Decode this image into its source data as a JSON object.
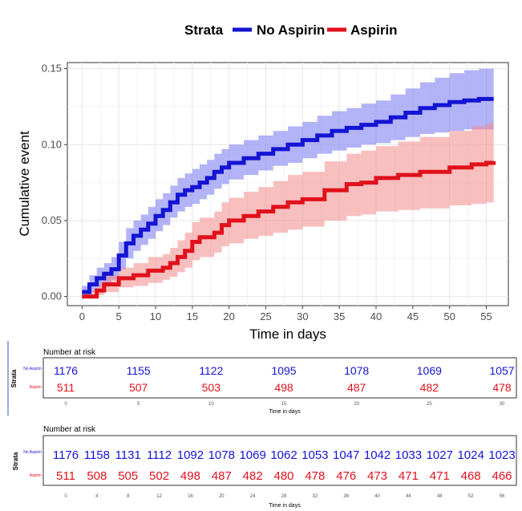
{
  "colors": {
    "no_aspirin": "#1414d4",
    "aspirin": "#e0111b",
    "no_aspirin_band": "#8080f2",
    "aspirin_band": "#f28a8a",
    "grid": "#e6e6e6"
  },
  "legend": {
    "title": "Strata",
    "items": [
      "No Aspirin",
      "Aspirin"
    ]
  },
  "chart_data": {
    "type": "line",
    "xlabel": "Time in days",
    "ylabel": "Cumulative event",
    "xlim": [
      -2,
      58
    ],
    "ylim": [
      -0.006,
      0.154
    ],
    "x_ticks": [
      "0",
      "5",
      "10",
      "15",
      "20",
      "25",
      "30",
      "35",
      "40",
      "45",
      "50",
      "55"
    ],
    "y_ticks": [
      "0.00",
      "0.05",
      "0.10",
      "0.15"
    ],
    "grid": true,
    "legend_position": "top",
    "step": true,
    "series": [
      {
        "name": "No Aspirin",
        "x": [
          0,
          1,
          2,
          3,
          4,
          5,
          6,
          7,
          8,
          9,
          10,
          11,
          12,
          13,
          14,
          15,
          16,
          17,
          18,
          19,
          20,
          22,
          24,
          26,
          28,
          30,
          32,
          34,
          36,
          38,
          40,
          42,
          44,
          46,
          48,
          50,
          52,
          54,
          56
        ],
        "y": [
          0.003,
          0.008,
          0.012,
          0.015,
          0.018,
          0.027,
          0.035,
          0.04,
          0.044,
          0.048,
          0.053,
          0.057,
          0.062,
          0.067,
          0.07,
          0.072,
          0.075,
          0.078,
          0.082,
          0.085,
          0.088,
          0.091,
          0.094,
          0.097,
          0.1,
          0.103,
          0.106,
          0.109,
          0.111,
          0.113,
          0.115,
          0.118,
          0.121,
          0.124,
          0.126,
          0.128,
          0.129,
          0.13,
          0.13
        ],
        "lower": [
          0.0,
          0.003,
          0.006,
          0.008,
          0.011,
          0.018,
          0.025,
          0.03,
          0.034,
          0.038,
          0.043,
          0.047,
          0.052,
          0.056,
          0.059,
          0.061,
          0.064,
          0.067,
          0.071,
          0.074,
          0.077,
          0.08,
          0.083,
          0.086,
          0.088,
          0.091,
          0.094,
          0.096,
          0.098,
          0.1,
          0.101,
          0.103,
          0.105,
          0.107,
          0.108,
          0.109,
          0.11,
          0.11,
          0.11
        ],
        "upper": [
          0.007,
          0.014,
          0.019,
          0.022,
          0.026,
          0.036,
          0.045,
          0.05,
          0.054,
          0.059,
          0.064,
          0.068,
          0.073,
          0.078,
          0.081,
          0.084,
          0.087,
          0.09,
          0.094,
          0.097,
          0.1,
          0.103,
          0.106,
          0.109,
          0.112,
          0.115,
          0.119,
          0.122,
          0.124,
          0.127,
          0.129,
          0.133,
          0.137,
          0.141,
          0.144,
          0.147,
          0.149,
          0.15,
          0.15
        ]
      },
      {
        "name": "Aspirin",
        "x": [
          0,
          2,
          3,
          5,
          7,
          9,
          11,
          12,
          13,
          14,
          15,
          16,
          18,
          19,
          20,
          22,
          24,
          26,
          28,
          30,
          33,
          36,
          38,
          40,
          43,
          46,
          50,
          53,
          55,
          56
        ],
        "y": [
          0.0,
          0.004,
          0.008,
          0.012,
          0.014,
          0.017,
          0.019,
          0.022,
          0.026,
          0.03,
          0.036,
          0.039,
          0.042,
          0.047,
          0.05,
          0.053,
          0.056,
          0.059,
          0.062,
          0.064,
          0.07,
          0.074,
          0.075,
          0.078,
          0.08,
          0.082,
          0.085,
          0.087,
          0.088,
          0.089
        ],
        "lower": [
          0.0,
          0.001,
          0.003,
          0.006,
          0.007,
          0.009,
          0.011,
          0.013,
          0.016,
          0.019,
          0.024,
          0.026,
          0.029,
          0.033,
          0.035,
          0.038,
          0.04,
          0.042,
          0.044,
          0.046,
          0.05,
          0.053,
          0.054,
          0.056,
          0.057,
          0.058,
          0.06,
          0.061,
          0.062,
          0.062
        ],
        "upper": [
          0.004,
          0.008,
          0.014,
          0.019,
          0.022,
          0.026,
          0.028,
          0.032,
          0.037,
          0.042,
          0.049,
          0.052,
          0.056,
          0.062,
          0.065,
          0.069,
          0.072,
          0.076,
          0.08,
          0.082,
          0.089,
          0.094,
          0.096,
          0.099,
          0.102,
          0.105,
          0.109,
          0.112,
          0.114,
          0.116
        ]
      }
    ]
  },
  "risk_tables": [
    {
      "title": "Number at risk",
      "strata_label": "Strata",
      "row_labels": [
        "No Aspirin",
        "Aspirin"
      ],
      "x_ticks": [
        "0",
        "5",
        "10",
        "15",
        "20",
        "25",
        "30"
      ],
      "rows": [
        [
          "1176",
          "1155",
          "1122",
          "1095",
          "1078",
          "1069",
          "1057"
        ],
        [
          "511",
          "507",
          "503",
          "498",
          "487",
          "482",
          "478"
        ]
      ],
      "xlabel": "Time in days"
    },
    {
      "title": "Number at risk",
      "strata_label": "Strata",
      "row_labels": [
        "No Aspirin",
        "Aspirin"
      ],
      "x_ticks": [
        "0",
        "4",
        "8",
        "12",
        "16",
        "20",
        "24",
        "28",
        "32",
        "36",
        "40",
        "44",
        "48",
        "52",
        "56"
      ],
      "rows": [
        [
          "1176",
          "1158",
          "1131",
          "1112",
          "1092",
          "1078",
          "1069",
          "1062",
          "1053",
          "1047",
          "1042",
          "1033",
          "1027",
          "1024",
          "1023"
        ],
        [
          "511",
          "508",
          "505",
          "502",
          "498",
          "487",
          "482",
          "480",
          "478",
          "476",
          "473",
          "471",
          "471",
          "468",
          "466"
        ]
      ],
      "xlabel": "Time in days"
    }
  ]
}
